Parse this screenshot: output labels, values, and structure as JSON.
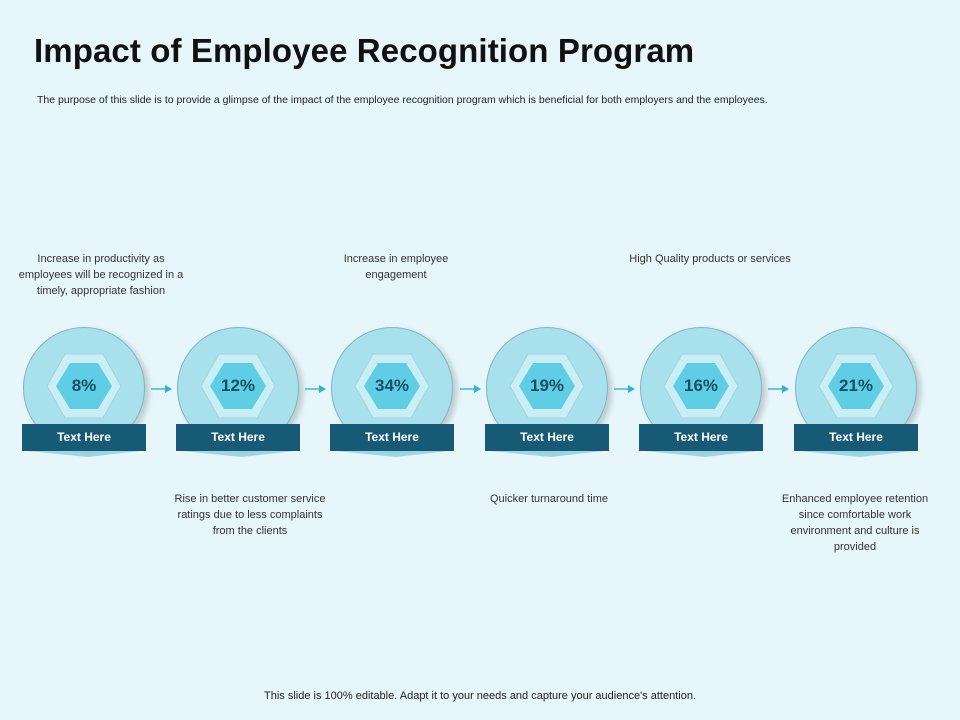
{
  "title": "Impact of Employee Recognition Program",
  "subtitle": "The purpose of this slide is to provide a glimpse of the impact of the employee recognition program which is beneficial for both employers and the employees.",
  "footer": "This slide is 100% editable. Adapt it to your needs and capture your audience's attention.",
  "colors": {
    "background": "#e6f6fa",
    "circle": "#a8e0eb",
    "hexagon": "#5fcde4",
    "bar": "#175a75",
    "arrow": "#2fb3d6"
  },
  "nodes": [
    {
      "value": "8%",
      "label": "Text Here",
      "description": "Increase in productivity as employees will be recognized in a timely, appropriate  fashion"
    },
    {
      "value": "12%",
      "label": "Text Here",
      "description": "Rise in better customer service ratings due to less complaints from the clients"
    },
    {
      "value": "34%",
      "label": "Text Here",
      "description": "Increase in employee engagement"
    },
    {
      "value": "19%",
      "label": "Text Here",
      "description": "Quicker turnaround  time"
    },
    {
      "value": "16%",
      "label": "Text Here",
      "description": "High Quality products or services"
    },
    {
      "value": "21%",
      "label": "Text Here",
      "description": "Enhanced employee retention since comfortable work environment  and culture is provided"
    }
  ]
}
